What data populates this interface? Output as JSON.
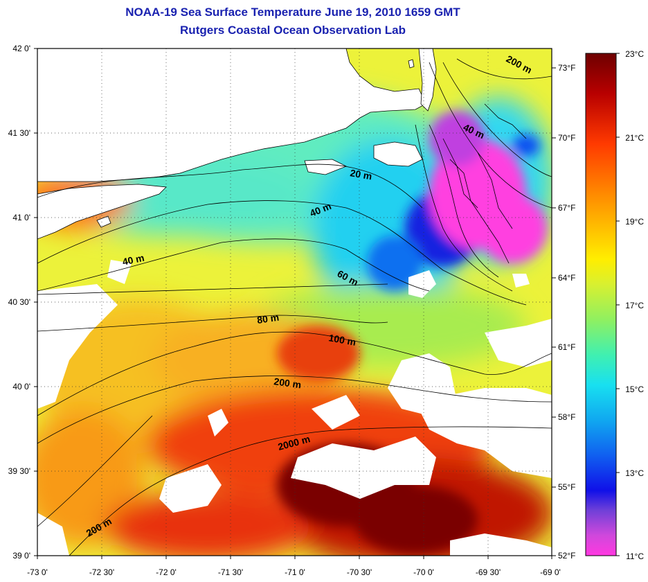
{
  "title": "NOAA-19 Sea Surface Temperature June 19, 2010 1659 GMT",
  "subtitle": "Rutgers Coastal Ocean Observation Lab",
  "axes": {
    "lat_labels": [
      "42 0'",
      "41 30'",
      "41 0'",
      "40 30'",
      "40 0'",
      "39 30'",
      "39 0'"
    ],
    "lon_labels": [
      "-73 0'",
      "-72 30'",
      "-72 0'",
      "-71 30'",
      "-71 0'",
      "-70 30'",
      "-70 0'",
      "-69 30'",
      "-69 0'"
    ]
  },
  "contour_labels": [
    "200 m",
    "40 m",
    "20 m",
    "40 m",
    "40 m",
    "60 m",
    "80 m",
    "100 m",
    "200 m",
    "2000 m",
    "200 m"
  ],
  "colorbar": {
    "celsius_labels": [
      "23°C",
      "21°C",
      "19°C",
      "17°C",
      "15°C",
      "13°C",
      "11°C"
    ],
    "fahrenheit_labels": [
      "73°F",
      "70°F",
      "67°F",
      "64°F",
      "61°F",
      "58°F",
      "55°F",
      "52°F"
    ],
    "colors": [
      "#6e0000",
      "#b80000",
      "#ff3a00",
      "#ff8a00",
      "#ffd800",
      "#e6f020",
      "#98f050",
      "#38f0b8",
      "#18e0f0",
      "#10a8f0",
      "#1060f0",
      "#1010e8",
      "#6a3ad8",
      "#c050d8",
      "#ff38e0"
    ]
  },
  "palette": {
    "land": "#ffffff",
    "cloud": "#ffffff",
    "title": "#1a22b0"
  }
}
